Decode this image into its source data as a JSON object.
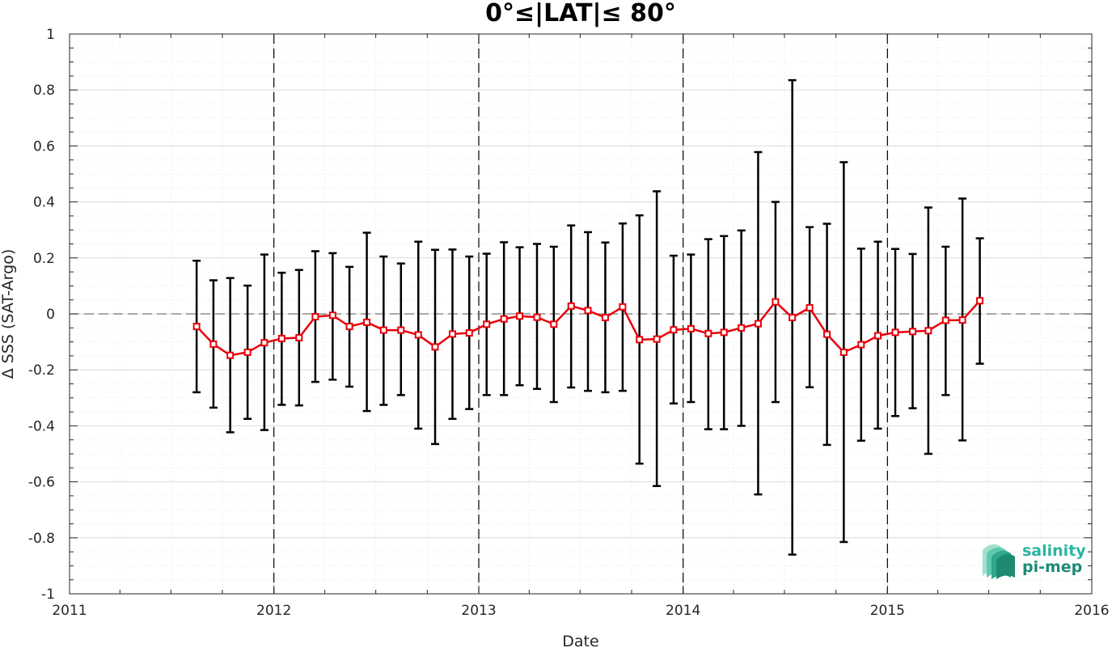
{
  "chart_data": {
    "type": "line",
    "title": "0°≤|LAT|≤ 80°",
    "xlabel": "Date",
    "ylabel": "Δ SSS (SAT-Argo)",
    "xlim": [
      "2011-01-01",
      "2016-01-01"
    ],
    "ylim": [
      -1,
      1
    ],
    "x_ticks": [
      "2011",
      "2012",
      "2013",
      "2014",
      "2015",
      "2016"
    ],
    "y_ticks": [
      "-1",
      "-0.8",
      "-0.6",
      "-0.4",
      "-0.2",
      "0",
      "0.2",
      "0.4",
      "0.6",
      "0.8",
      "1"
    ],
    "grid": true,
    "reference_line": 0,
    "year_boundaries": [
      "2012-01-01",
      "2013-01-01",
      "2014-01-01",
      "2015-01-01"
    ],
    "series": [
      {
        "color": "#e8000b",
        "errorbar_color": "#000000",
        "marker": "square",
        "x": [
          "2011-08-16",
          "2011-09-15",
          "2011-10-15",
          "2011-11-15",
          "2011-12-15",
          "2012-01-15",
          "2012-02-15",
          "2012-03-15",
          "2012-04-15",
          "2012-05-15",
          "2012-06-15",
          "2012-07-15",
          "2012-08-15",
          "2012-09-15",
          "2012-10-15",
          "2012-11-15",
          "2012-12-15",
          "2013-01-15",
          "2013-02-15",
          "2013-03-15",
          "2013-04-15",
          "2013-05-15",
          "2013-06-15",
          "2013-07-15",
          "2013-08-15",
          "2013-09-15",
          "2013-10-15",
          "2013-11-15",
          "2013-12-15",
          "2014-01-15",
          "2014-02-15",
          "2014-03-15",
          "2014-04-15",
          "2014-05-15",
          "2014-06-15",
          "2014-07-15",
          "2014-08-15",
          "2014-09-15",
          "2014-10-15",
          "2014-11-15",
          "2014-12-15",
          "2015-01-15",
          "2015-02-15",
          "2015-03-15",
          "2015-04-15",
          "2015-05-15",
          "2015-06-15"
        ],
        "y": [
          -0.045,
          -0.108,
          -0.148,
          -0.137,
          -0.103,
          -0.088,
          -0.085,
          -0.01,
          -0.005,
          -0.045,
          -0.03,
          -0.058,
          -0.058,
          -0.075,
          -0.118,
          -0.072,
          -0.068,
          -0.037,
          -0.018,
          -0.008,
          -0.012,
          -0.037,
          0.028,
          0.012,
          -0.013,
          0.025,
          -0.092,
          -0.09,
          -0.057,
          -0.053,
          -0.07,
          -0.066,
          -0.05,
          -0.035,
          0.043,
          -0.013,
          0.022,
          -0.073,
          -0.137,
          -0.11,
          -0.078,
          -0.066,
          -0.063,
          -0.06,
          -0.023,
          -0.022,
          0.047
        ],
        "err_low": [
          -0.28,
          -0.335,
          -0.423,
          -0.375,
          -0.415,
          -0.325,
          -0.327,
          -0.243,
          -0.235,
          -0.26,
          -0.347,
          -0.325,
          -0.29,
          -0.41,
          -0.465,
          -0.375,
          -0.34,
          -0.29,
          -0.29,
          -0.255,
          -0.268,
          -0.315,
          -0.263,
          -0.275,
          -0.28,
          -0.275,
          -0.535,
          -0.615,
          -0.32,
          -0.315,
          -0.412,
          -0.412,
          -0.4,
          -0.645,
          -0.315,
          -0.86,
          -0.262,
          -0.468,
          -0.815,
          -0.453,
          -0.41,
          -0.365,
          -0.337,
          -0.5,
          -0.29,
          -0.452,
          -0.178
        ],
        "err_high": [
          0.19,
          0.12,
          0.128,
          0.101,
          0.212,
          0.147,
          0.157,
          0.224,
          0.217,
          0.168,
          0.29,
          0.205,
          0.18,
          0.258,
          0.229,
          0.23,
          0.205,
          0.215,
          0.256,
          0.238,
          0.25,
          0.24,
          0.316,
          0.292,
          0.255,
          0.323,
          0.352,
          0.438,
          0.208,
          0.212,
          0.267,
          0.278,
          0.298,
          0.578,
          0.4,
          0.835,
          0.31,
          0.322,
          0.542,
          0.233,
          0.258,
          0.232,
          0.214,
          0.38,
          0.24,
          0.412,
          0.27
        ]
      }
    ]
  },
  "logo": {
    "line1": "salinity",
    "line2": "pi-mep",
    "color1": "#2bb5a0",
    "color2": "#1d8a76"
  }
}
